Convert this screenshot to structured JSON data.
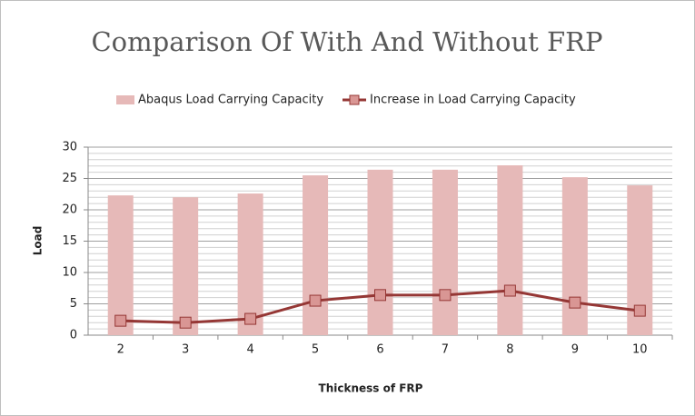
{
  "chart_data": {
    "type": "bar",
    "title": "Comparison Of With And Without FRP",
    "x_label": "Thickness of FRP",
    "y_label": "Load",
    "categories": [
      "2",
      "3",
      "4",
      "5",
      "6",
      "7",
      "8",
      "9",
      "10"
    ],
    "series": [
      {
        "name": "Abaqus Load Carrying Capacity",
        "type": "bar",
        "color": "#e6b9b8",
        "values": [
          22.3,
          22.0,
          22.6,
          25.5,
          26.4,
          26.4,
          27.1,
          25.2,
          23.9
        ]
      },
      {
        "name": "Increase in Load Carrying Capacity",
        "type": "line",
        "color": "#953735",
        "marker_color": "#d99694",
        "values": [
          2.3,
          2.0,
          2.6,
          5.5,
          6.4,
          6.4,
          7.1,
          5.2,
          3.9
        ]
      }
    ],
    "ylim": [
      0,
      30
    ],
    "yticks": [
      0,
      5,
      10,
      15,
      20,
      25,
      30
    ],
    "minor_yticks": [
      1,
      2,
      3,
      4,
      6,
      7,
      8,
      9,
      11,
      12,
      13,
      14,
      16,
      17,
      18,
      19,
      21,
      22,
      23,
      24,
      26,
      27,
      28,
      29
    ],
    "grid": true,
    "legend": "top"
  }
}
